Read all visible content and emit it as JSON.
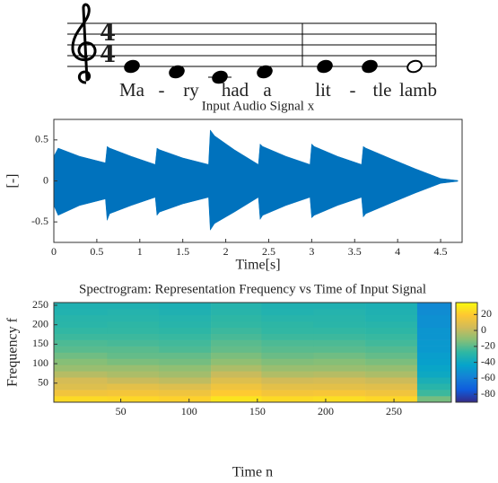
{
  "score": {
    "time_signature": [
      "4",
      "4"
    ],
    "lyrics": [
      "Ma",
      "-",
      "ry",
      "had",
      "a",
      "lit",
      "-",
      "tle",
      "lamb"
    ]
  },
  "chart_data": [
    {
      "type": "area",
      "title": "Input Audio Signal x",
      "xlabel": "Time[s]",
      "ylabel": "[-]",
      "color": "#0072bd",
      "x": [
        0,
        0.05,
        0.3,
        0.6,
        0.62,
        0.65,
        0.9,
        1.18,
        1.2,
        1.23,
        1.5,
        1.8,
        1.82,
        1.87,
        2.1,
        2.38,
        2.4,
        2.43,
        2.7,
        2.98,
        3.0,
        3.03,
        3.3,
        3.58,
        3.6,
        3.63,
        3.9,
        4.2,
        4.5,
        4.7
      ],
      "values_max": [
        0.3,
        0.4,
        0.3,
        0.22,
        0.42,
        0.4,
        0.3,
        0.2,
        0.4,
        0.38,
        0.28,
        0.2,
        0.62,
        0.55,
        0.38,
        0.2,
        0.45,
        0.42,
        0.3,
        0.2,
        0.45,
        0.42,
        0.3,
        0.2,
        0.42,
        0.4,
        0.28,
        0.15,
        0.03,
        0.005
      ],
      "values_min": [
        -0.3,
        -0.42,
        -0.3,
        -0.22,
        -0.48,
        -0.4,
        -0.3,
        -0.2,
        -0.42,
        -0.38,
        -0.28,
        -0.2,
        -0.6,
        -0.52,
        -0.38,
        -0.2,
        -0.47,
        -0.42,
        -0.3,
        -0.2,
        -0.45,
        -0.42,
        -0.3,
        -0.2,
        -0.44,
        -0.4,
        -0.28,
        -0.15,
        -0.03,
        -0.005
      ],
      "xlim": [
        0,
        4.75
      ],
      "xticks": [
        0,
        0.5,
        1,
        1.5,
        2,
        2.5,
        3,
        3.5,
        4,
        4.5
      ],
      "ylim": [
        -0.75,
        0.75
      ],
      "yticks": [
        -0.5,
        0,
        0.5
      ]
    },
    {
      "type": "heatmap",
      "title": "Spectrogram: Representation Frequency vs Time of Input Signal",
      "xlabel": "Time n",
      "ylabel": "Frequency f",
      "x_edges": [
        1,
        40,
        78,
        116,
        153,
        191,
        229,
        267,
        292
      ],
      "y_edges": [
        1,
        17,
        33,
        49,
        65,
        81,
        97,
        113,
        129,
        145,
        161,
        177,
        193,
        209,
        225,
        241,
        257
      ],
      "z": [
        [
          25,
          24,
          22,
          28,
          25,
          26,
          24,
          -15
        ],
        [
          15,
          16,
          14,
          20,
          16,
          17,
          15,
          -25
        ],
        [
          8,
          10,
          8,
          14,
          10,
          10,
          9,
          -30
        ],
        [
          5,
          2,
          0,
          8,
          4,
          5,
          3,
          -35
        ],
        [
          -2,
          -4,
          -6,
          2,
          -3,
          -2,
          -4,
          -40
        ],
        [
          -8,
          -8,
          -10,
          -4,
          -8,
          -8,
          -9,
          -42
        ],
        [
          -12,
          -14,
          -15,
          -10,
          -13,
          -12,
          -14,
          -45
        ],
        [
          -16,
          -18,
          -18,
          -14,
          -17,
          -16,
          -18,
          -46
        ],
        [
          -20,
          -20,
          -22,
          -18,
          -20,
          -20,
          -21,
          -48
        ],
        [
          -22,
          -23,
          -24,
          -20,
          -22,
          -22,
          -24,
          -48
        ],
        [
          -25,
          -25,
          -26,
          -23,
          -25,
          -25,
          -26,
          -50
        ],
        [
          -27,
          -27,
          -28,
          -25,
          -27,
          -27,
          -28,
          -50
        ],
        [
          -29,
          -28,
          -30,
          -27,
          -28,
          -29,
          -30,
          -52
        ],
        [
          -30,
          -30,
          -31,
          -28,
          -30,
          -30,
          -32,
          -52
        ],
        [
          -32,
          -31,
          -33,
          -30,
          -32,
          -31,
          -33,
          -54
        ],
        [
          -33,
          -33,
          -34,
          -31,
          -33,
          -33,
          -34,
          -55
        ]
      ],
      "xlim": [
        1,
        292
      ],
      "xticks": [
        50,
        100,
        150,
        200,
        250
      ],
      "ylim": [
        1,
        257
      ],
      "yticks": [
        50,
        100,
        150,
        200,
        250
      ],
      "clim": [
        -90,
        35
      ],
      "cticks": [
        20,
        0,
        -20,
        -40,
        -60,
        -80
      ]
    }
  ]
}
